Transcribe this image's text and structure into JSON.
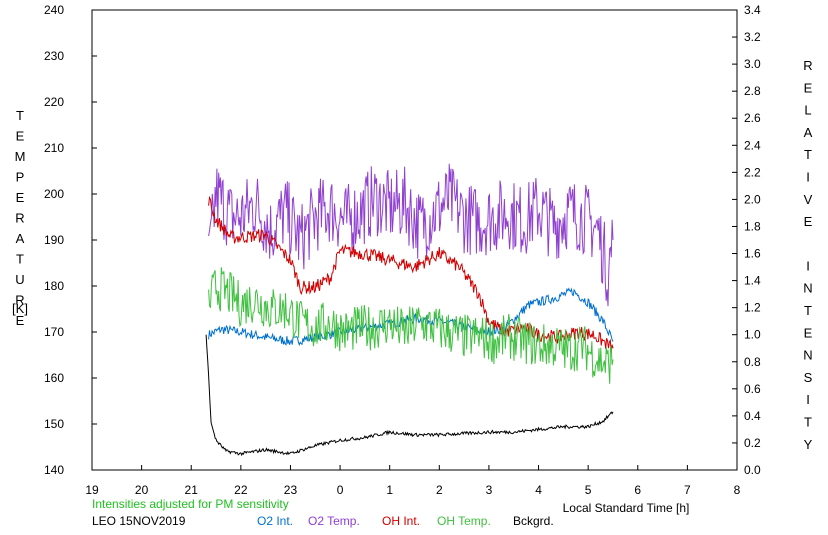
{
  "chart_data": {
    "type": "line",
    "title": "",
    "xlabel": "Local Standard Time [h]",
    "ylabel_left": "TEMPERATURE",
    "ylabel_left_unit": "[K]",
    "ylabel_right": "RELATIVE INTENSITY",
    "x_range": [
      19,
      32
    ],
    "x_ticks": [
      19,
      20,
      21,
      22,
      23,
      24,
      25,
      26,
      27,
      28,
      29,
      30,
      31,
      32
    ],
    "x_tick_labels": [
      "19",
      "20",
      "21",
      "22",
      "23",
      "0",
      "1",
      "2",
      "3",
      "4",
      "5",
      "6",
      "7",
      "8"
    ],
    "ylim_left": [
      140,
      240
    ],
    "y_left_ticks": [
      "140",
      "150",
      "160",
      "170",
      "180",
      "190",
      "200",
      "210",
      "220",
      "230",
      "240"
    ],
    "ylim_right": [
      0.0,
      3.4
    ],
    "y_right_ticks": [
      "0.0",
      "0.2",
      "0.4",
      "0.6",
      "0.8",
      "1.0",
      "1.2",
      "1.4",
      "1.6",
      "1.8",
      "2.0",
      "2.2",
      "2.4",
      "2.6",
      "2.8",
      "3.0",
      "3.2",
      "3.4"
    ],
    "grid": false,
    "note": "Intensities adjusted for PM sensitivity",
    "station": "LEO 15NOV2019",
    "legend_placement": "bottom",
    "series": [
      {
        "name": "O2 Int.",
        "axis": "right",
        "color": "#0070d0",
        "x": [
          21.35,
          21.6,
          22.0,
          22.5,
          23.0,
          23.5,
          24.0,
          24.5,
          25.0,
          25.5,
          26.0,
          26.5,
          26.9,
          27.3,
          27.8,
          28.3,
          28.7,
          29.0,
          29.3,
          29.5
        ],
        "y": [
          1.0,
          1.04,
          1.02,
          0.98,
          0.95,
          0.98,
          1.02,
          1.05,
          1.08,
          1.12,
          1.1,
          1.06,
          1.02,
          1.04,
          1.22,
          1.27,
          1.32,
          1.24,
          1.1,
          0.95
        ]
      },
      {
        "name": "O2 Temp.",
        "axis": "left",
        "color": "#9040d0",
        "x": [
          21.35,
          21.5,
          21.8,
          22.0,
          22.3,
          22.6,
          22.9,
          23.2,
          23.5,
          23.8,
          24.1,
          24.4,
          24.7,
          25.0,
          25.3,
          25.6,
          25.9,
          26.2,
          26.5,
          26.8,
          27.1,
          27.4,
          27.7,
          28.0,
          28.3,
          28.6,
          28.9,
          29.2,
          29.4,
          29.5
        ],
        "y": [
          185,
          200,
          195,
          195,
          198,
          192,
          196,
          190,
          195,
          197,
          194,
          196,
          199,
          197,
          198,
          193,
          196,
          199,
          195,
          194,
          195,
          196,
          194,
          197,
          193,
          196,
          195,
          192,
          183,
          190
        ]
      },
      {
        "name": "OH Int.",
        "axis": "right",
        "color": "#d00000",
        "x": [
          21.35,
          21.5,
          21.8,
          22.0,
          22.5,
          23.0,
          23.2,
          23.5,
          23.8,
          24.0,
          24.5,
          25.0,
          25.5,
          26.0,
          26.4,
          26.8,
          27.0,
          27.3,
          27.7,
          28.0,
          28.4,
          28.8,
          29.1,
          29.3,
          29.5
        ],
        "y": [
          2.0,
          1.85,
          1.72,
          1.72,
          1.74,
          1.55,
          1.35,
          1.35,
          1.42,
          1.62,
          1.6,
          1.55,
          1.5,
          1.6,
          1.5,
          1.3,
          1.1,
          1.02,
          1.05,
          1.0,
          0.98,
          1.02,
          1.0,
          0.95,
          0.9
        ]
      },
      {
        "name": "OH Temp.",
        "axis": "left",
        "color": "#40c040",
        "x": [
          21.35,
          21.5,
          21.8,
          22.0,
          22.3,
          22.6,
          22.9,
          23.2,
          23.5,
          23.8,
          24.1,
          24.4,
          24.7,
          25.0,
          25.3,
          25.6,
          25.9,
          26.2,
          26.5,
          26.8,
          27.1,
          27.4,
          27.7,
          28.0,
          28.3,
          28.6,
          28.9,
          29.2,
          29.4,
          29.5
        ],
        "y": [
          176,
          180,
          178,
          176,
          177,
          175,
          175,
          172,
          171,
          172,
          170,
          171,
          171,
          172,
          170,
          172,
          171,
          170,
          169,
          169,
          168,
          169,
          168,
          167,
          167,
          166,
          167,
          164,
          163,
          164
        ]
      },
      {
        "name": "Bckgrd.",
        "axis": "right",
        "color": "#000000",
        "x": [
          21.3,
          21.35,
          21.4,
          21.5,
          21.7,
          22.0,
          22.5,
          23.0,
          23.5,
          24.0,
          24.5,
          25.0,
          25.5,
          26.0,
          26.5,
          27.0,
          27.5,
          28.0,
          28.5,
          29.0,
          29.3,
          29.5
        ],
        "y": [
          1.0,
          0.7,
          0.35,
          0.22,
          0.14,
          0.12,
          0.15,
          0.12,
          0.18,
          0.22,
          0.24,
          0.28,
          0.26,
          0.26,
          0.27,
          0.28,
          0.28,
          0.3,
          0.32,
          0.32,
          0.36,
          0.43
        ]
      }
    ]
  }
}
